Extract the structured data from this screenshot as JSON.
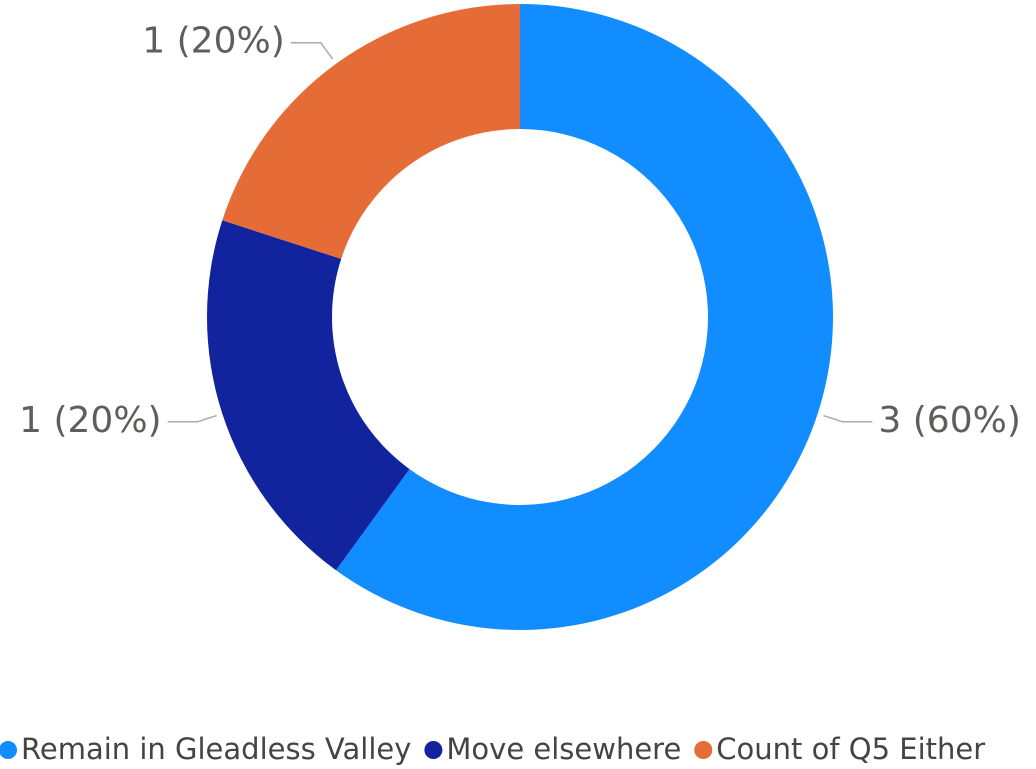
{
  "chart_data": {
    "type": "donut",
    "categories": [
      "Remain in Gleadless Valley",
      "Move elsewhere",
      "Count of Q5 Either"
    ],
    "values": [
      3,
      1,
      1
    ],
    "value_labels": [
      "3 (60%)",
      "1 (20%)",
      "1 (20%)"
    ],
    "colors": [
      "#118dff",
      "#12239e",
      "#e66c37"
    ],
    "legend": "bottom"
  }
}
